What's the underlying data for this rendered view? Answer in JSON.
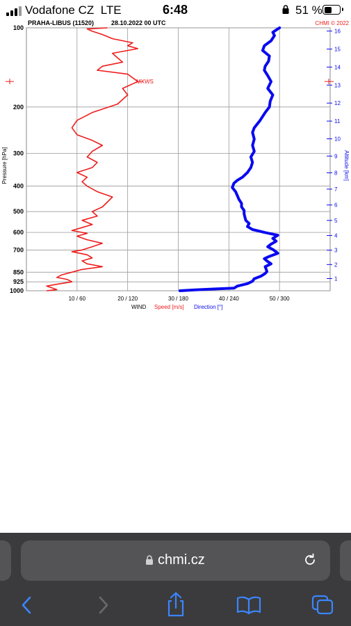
{
  "status_bar": {
    "carrier": "Vodafone CZ",
    "network": "LTE",
    "time": "6:48",
    "battery": "51 %",
    "battery_level": 0.51
  },
  "chart": {
    "title": "PRAHA-LIBUS (11520)",
    "datetime": "28.10.2022 00 UTC",
    "credit": "CHMI © 2022",
    "pressure_label": "Pressure [hPa]",
    "altitude_label": "Altitude [km]",
    "pressure_ticks": [
      "100",
      "200",
      "300",
      "400",
      "500",
      "600",
      "700",
      "850",
      "925",
      "1000"
    ],
    "altitude_ticks": [
      "1",
      "2",
      "3",
      "4",
      "5",
      "6",
      "7",
      "8",
      "9",
      "10",
      "11",
      "12",
      "13",
      "14",
      "15",
      "16"
    ],
    "x_ticks": [
      "10 / 60",
      "20 / 120",
      "30 / 180",
      "40 / 240",
      "50 / 300"
    ],
    "wind_label": "WIND",
    "speed_label": "Speed [m/s]",
    "direction_label": "Direction [°]",
    "mxws_label": "MXWS",
    "speed_color": "#ee1c1c",
    "direction_color": "#0a0af0"
  },
  "chart_data": {
    "type": "line",
    "title": "PRAHA-LIBUS (11520) 28.10.2022 00 UTC",
    "xlabel": "WIND Speed [m/s] Direction [°]",
    "ylabel": "Pressure [hPa]",
    "y2label": "Altitude [km]",
    "xlim_speed": [
      0,
      60
    ],
    "xlim_direction": [
      0,
      360
    ],
    "ylim": [
      1000,
      100
    ],
    "y_scale": "log",
    "grid": true,
    "series": [
      {
        "name": "Speed [m/s]",
        "points": [
          [
            4,
            1000
          ],
          [
            6,
            990
          ],
          [
            5,
            975
          ],
          [
            4,
            960
          ],
          [
            6,
            945
          ],
          [
            9,
            925
          ],
          [
            8,
            905
          ],
          [
            6,
            890
          ],
          [
            7,
            870
          ],
          [
            9,
            850
          ],
          [
            11,
            830
          ],
          [
            15,
            810
          ],
          [
            12,
            790
          ],
          [
            11,
            770
          ],
          [
            13,
            750
          ],
          [
            12,
            730
          ],
          [
            9,
            710
          ],
          [
            11,
            700
          ],
          [
            13,
            680
          ],
          [
            15,
            660
          ],
          [
            12,
            640
          ],
          [
            10,
            620
          ],
          [
            12,
            605
          ],
          [
            9,
            590
          ],
          [
            11,
            575
          ],
          [
            13,
            560
          ],
          [
            11,
            540
          ],
          [
            14,
            520
          ],
          [
            13,
            500
          ],
          [
            15,
            480
          ],
          [
            16,
            460
          ],
          [
            17,
            440
          ],
          [
            14,
            420
          ],
          [
            12,
            400
          ],
          [
            11,
            385
          ],
          [
            12,
            370
          ],
          [
            10,
            355
          ],
          [
            13,
            340
          ],
          [
            14,
            325
          ],
          [
            12,
            310
          ],
          [
            13,
            295
          ],
          [
            15,
            280
          ],
          [
            13,
            268
          ],
          [
            10,
            255
          ],
          [
            9,
            240
          ],
          [
            10,
            225
          ],
          [
            13,
            210
          ],
          [
            18,
            195
          ],
          [
            20,
            180
          ],
          [
            19,
            170
          ],
          [
            22,
            160
          ],
          [
            20,
            150
          ],
          [
            14,
            145
          ],
          [
            15,
            140
          ],
          [
            19,
            135
          ],
          [
            18,
            130
          ],
          [
            17,
            125
          ],
          [
            22,
            120
          ],
          [
            20,
            117
          ],
          [
            21,
            114
          ],
          [
            17,
            110
          ],
          [
            15,
            106
          ],
          [
            13,
            103
          ],
          [
            12,
            101
          ],
          [
            16,
            100
          ]
        ]
      },
      {
        "name": "Direction [°]",
        "points": [
          [
            182,
            1000
          ],
          [
            200,
            992
          ],
          [
            222,
            985
          ],
          [
            246,
            978
          ],
          [
            250,
            960
          ],
          [
            262,
            940
          ],
          [
            268,
            920
          ],
          [
            270,
            900
          ],
          [
            278,
            880
          ],
          [
            283,
            860
          ],
          [
            285,
            845
          ],
          [
            284,
            825
          ],
          [
            283,
            810
          ],
          [
            290,
            790
          ],
          [
            285,
            770
          ],
          [
            282,
            755
          ],
          [
            288,
            740
          ],
          [
            298,
            720
          ],
          [
            293,
            700
          ],
          [
            286,
            680
          ],
          [
            290,
            665
          ],
          [
            296,
            648
          ],
          [
            292,
            632
          ],
          [
            298,
            615
          ],
          [
            282,
            600
          ],
          [
            268,
            585
          ],
          [
            262,
            570
          ],
          [
            264,
            555
          ],
          [
            260,
            540
          ],
          [
            259,
            525
          ],
          [
            258,
            510
          ],
          [
            258,
            495
          ],
          [
            255,
            480
          ],
          [
            255,
            465
          ],
          [
            252,
            450
          ],
          [
            250,
            435
          ],
          [
            248,
            420
          ],
          [
            244,
            405
          ],
          [
            246,
            390
          ],
          [
            250,
            380
          ],
          [
            256,
            370
          ],
          [
            262,
            355
          ],
          [
            266,
            340
          ],
          [
            268,
            325
          ],
          [
            266,
            310
          ],
          [
            270,
            295
          ],
          [
            268,
            280
          ],
          [
            270,
            265
          ],
          [
            268,
            250
          ],
          [
            270,
            240
          ],
          [
            277,
            225
          ],
          [
            283,
            210
          ],
          [
            288,
            200
          ],
          [
            289,
            190
          ],
          [
            292,
            180
          ],
          [
            286,
            170
          ],
          [
            290,
            160
          ],
          [
            286,
            152
          ],
          [
            282,
            145
          ],
          [
            283,
            140
          ],
          [
            287,
            134
          ],
          [
            288,
            128
          ],
          [
            280,
            122
          ],
          [
            282,
            117
          ],
          [
            290,
            112
          ],
          [
            294,
            107
          ],
          [
            292,
            104
          ],
          [
            298,
            101
          ],
          [
            300,
            100
          ]
        ]
      }
    ],
    "annotations": [
      "MXWS"
    ]
  },
  "browser": {
    "url": "chmi.cz",
    "icons": [
      "lock-icon",
      "reload-icon",
      "back-icon",
      "forward-icon",
      "share-icon",
      "bookmarks-icon",
      "tabs-icon"
    ]
  }
}
